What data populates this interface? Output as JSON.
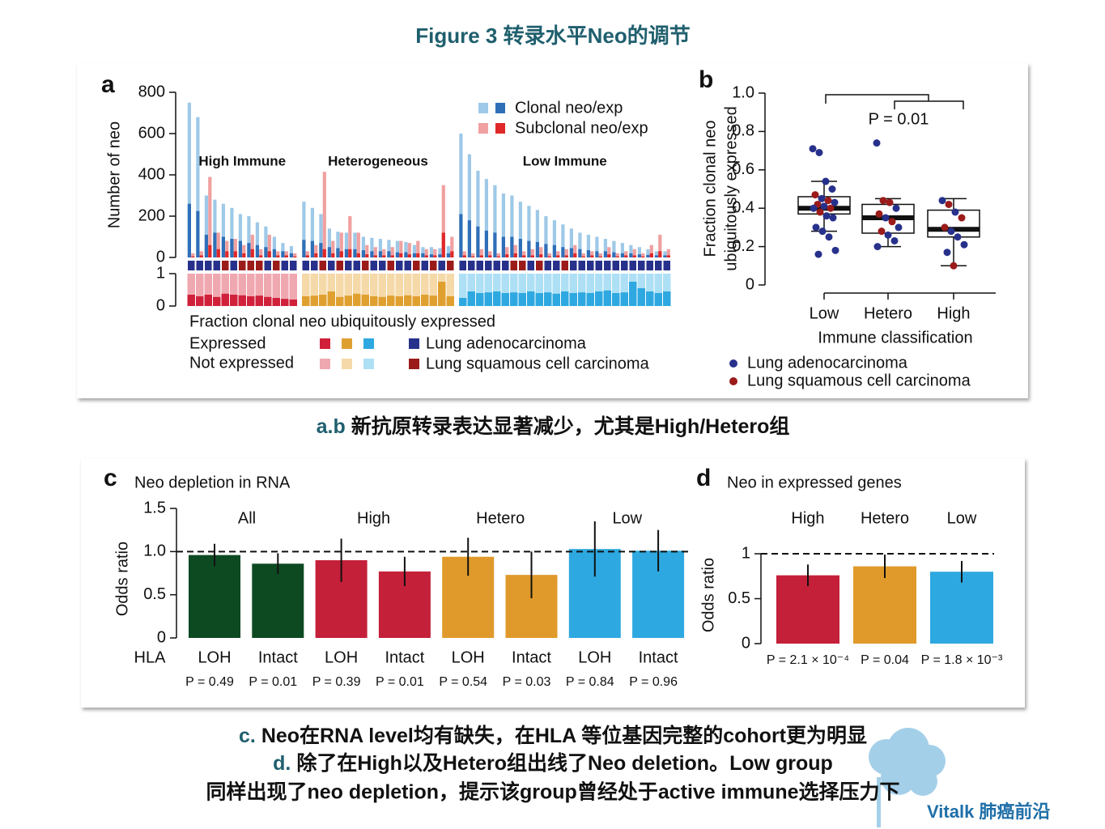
{
  "title": "Figure 3 转录水平Neo的调节",
  "captions": [
    {
      "prefix": "a.b",
      "text": "新抗原转录表达显著减少，尤其是High/Hetero组"
    },
    {
      "prefix": "c.",
      "text": "Neo在RNA level均有缺失，在HLA 等位基因完整的cohort更为明显"
    },
    {
      "prefix": "d.",
      "text": "除了在High以及Hetero组出线了Neo deletion。Low group"
    },
    {
      "text": "同样出现了neo depletion，提示该group曾经处于active immune选择压力下"
    }
  ],
  "logo": "Vitalk 肺癌前沿",
  "chart_data": [
    {
      "type": "bar",
      "panel": "a",
      "ylabel": "Number of neo",
      "ylim": [
        0,
        800
      ],
      "yticks": [
        0,
        200,
        400,
        600,
        800
      ],
      "legend": [
        {
          "name": "Clonal neo/exp",
          "colors": [
            "#9ec9e8",
            "#2f6fb8"
          ]
        },
        {
          "name": "Subclonal neo/exp",
          "colors": [
            "#f0a0a0",
            "#e02828"
          ]
        }
      ],
      "histology_legend": [
        {
          "name": "Lung adenocarcinoma",
          "color": "#27318b"
        },
        {
          "name": "Lung squamous cell carcinoma",
          "color": "#9b1b1b"
        }
      ],
      "fraction_label": "Fraction clonal neo ubiquitously expressed",
      "fraction_ylim": [
        0,
        1
      ],
      "fraction_yticks": [
        0,
        1
      ],
      "expressed_label": "Expressed",
      "not_expressed_label": "Not expressed",
      "groups": [
        {
          "name": "High Immune",
          "colors": [
            "#d0203a",
            "#f0a8b0"
          ],
          "clonal": [
            750,
            680,
            300,
            280,
            260,
            240,
            210,
            200,
            170,
            150,
            100,
            70,
            55
          ],
          "clonal_expressed": [
            260,
            225,
            110,
            120,
            100,
            90,
            80,
            70,
            60,
            50,
            40,
            30,
            20
          ],
          "subclonal": [
            20,
            30,
            390,
            120,
            80,
            90,
            60,
            110,
            40,
            110,
            30,
            30,
            20
          ],
          "subclonal_expressed": [
            5,
            10,
            60,
            40,
            30,
            30,
            20,
            40,
            10,
            30,
            10,
            10,
            5
          ],
          "histology": [
            0,
            0,
            0,
            0,
            1,
            0,
            1,
            1,
            1,
            0,
            1,
            0,
            0
          ],
          "fraction": [
            0.35,
            0.3,
            0.35,
            0.28,
            0.38,
            0.35,
            0.33,
            0.3,
            0.32,
            0.28,
            0.25,
            0.22,
            0.2
          ]
        },
        {
          "name": "Heterogeneous",
          "colors": [
            "#e0a030",
            "#f5d9a8"
          ],
          "clonal": [
            270,
            240,
            210,
            140,
            125,
            120,
            120,
            100,
            95,
            90,
            85,
            80,
            75,
            60,
            50,
            50,
            45,
            55
          ],
          "clonal_expressed": [
            85,
            80,
            70,
            50,
            45,
            40,
            40,
            35,
            30,
            30,
            30,
            25,
            25,
            20,
            20,
            15,
            15,
            20
          ],
          "subclonal": [
            30,
            60,
            415,
            80,
            120,
            200,
            120,
            60,
            50,
            40,
            50,
            80,
            70,
            80,
            40,
            40,
            350,
            100
          ],
          "subclonal_expressed": [
            10,
            20,
            40,
            20,
            30,
            40,
            20,
            15,
            10,
            10,
            10,
            20,
            15,
            20,
            10,
            10,
            120,
            30
          ],
          "histology": [
            0,
            0,
            1,
            0,
            1,
            0,
            0,
            1,
            0,
            0,
            1,
            0,
            0,
            1,
            0,
            1,
            0,
            1
          ],
          "fraction": [
            0.3,
            0.32,
            0.35,
            0.45,
            0.28,
            0.32,
            0.38,
            0.35,
            0.3,
            0.28,
            0.32,
            0.3,
            0.33,
            0.3,
            0.35,
            0.32,
            0.75,
            0.3
          ]
        },
        {
          "name": "Low Immune",
          "colors": [
            "#2ea8e0",
            "#aee0f5"
          ],
          "clonal": [
            600,
            500,
            420,
            380,
            350,
            310,
            300,
            270,
            250,
            230,
            200,
            180,
            160,
            140,
            120,
            110,
            100,
            90,
            80,
            70,
            60,
            50,
            40,
            30,
            30
          ],
          "clonal_expressed": [
            210,
            180,
            150,
            130,
            120,
            100,
            100,
            90,
            80,
            75,
            65,
            60,
            50,
            45,
            40,
            35,
            30,
            30,
            25,
            20,
            20,
            15,
            12,
            10,
            10
          ],
          "subclonal": [
            30,
            20,
            40,
            30,
            20,
            50,
            60,
            30,
            40,
            50,
            20,
            30,
            40,
            60,
            20,
            30,
            20,
            50,
            20,
            30,
            40,
            20,
            60,
            110,
            40
          ],
          "subclonal_expressed": [
            10,
            5,
            10,
            10,
            5,
            15,
            20,
            10,
            10,
            15,
            5,
            10,
            10,
            20,
            5,
            10,
            5,
            15,
            5,
            10,
            10,
            5,
            20,
            30,
            10
          ],
          "histology": [
            0,
            0,
            0,
            0,
            0,
            0,
            1,
            1,
            0,
            1,
            0,
            0,
            1,
            0,
            0,
            0,
            0,
            0,
            0,
            0,
            0,
            0,
            0,
            0,
            0
          ],
          "fraction": [
            0.25,
            0.45,
            0.4,
            0.42,
            0.45,
            0.4,
            0.42,
            0.4,
            0.45,
            0.4,
            0.42,
            0.38,
            0.45,
            0.4,
            0.42,
            0.4,
            0.45,
            0.48,
            0.4,
            0.42,
            0.75,
            0.55,
            0.45,
            0.4,
            0.45
          ]
        }
      ]
    },
    {
      "type": "box",
      "panel": "b",
      "ylabel": [
        "Fraction clonal neo",
        "ubiquitously expressed"
      ],
      "xlabel": "Immune classification",
      "categories": [
        "Low",
        "Hetero",
        "High"
      ],
      "ylim": [
        0,
        1
      ],
      "yticks": [
        0,
        0.2,
        0.4,
        0.6,
        0.8,
        {
          "value": 1,
          "label": "1.0"
        }
      ],
      "annotation": "P = 0.01",
      "boxes": [
        {
          "whislo": 0.28,
          "q1": 0.37,
          "med": 0.4,
          "q3": 0.46,
          "whishi": 0.54
        },
        {
          "whislo": 0.2,
          "q1": 0.27,
          "med": 0.35,
          "q3": 0.42,
          "whishi": 0.45
        },
        {
          "whislo": 0.1,
          "q1": 0.25,
          "med": 0.29,
          "q3": 0.39,
          "whishi": 0.45
        }
      ],
      "points": [
        {
          "values": [
            0.71,
            0.69,
            0.54,
            0.5,
            0.47,
            0.45,
            0.44,
            0.43,
            0.42,
            0.41,
            0.4,
            0.4,
            0.38,
            0.36,
            0.35,
            0.3,
            0.28,
            0.25,
            0.18,
            0.16
          ],
          "histology": [
            0,
            0,
            0,
            0,
            1,
            0,
            1,
            0,
            1,
            0,
            1,
            0,
            1,
            0,
            0,
            0,
            0,
            0,
            0,
            0
          ]
        },
        {
          "values": [
            0.74,
            0.44,
            0.43,
            0.4,
            0.37,
            0.35,
            0.33,
            0.3,
            0.28,
            0.26,
            0.23,
            0.2
          ],
          "histology": [
            0,
            1,
            1,
            0,
            1,
            0,
            1,
            0,
            1,
            0,
            0,
            0
          ]
        },
        {
          "values": [
            0.44,
            0.42,
            0.38,
            0.35,
            0.3,
            0.28,
            0.25,
            0.21,
            0.17,
            0.1
          ],
          "histology": [
            0,
            1,
            0,
            1,
            1,
            0,
            0,
            0,
            0,
            1
          ]
        }
      ],
      "legend": [
        {
          "name": "Lung adenocarcinoma",
          "color": "#27318b"
        },
        {
          "name": "Lung squamous cell carcinoma",
          "color": "#9b1b1b"
        }
      ]
    },
    {
      "type": "bar",
      "panel": "c",
      "title": "Neo depletion in RNA",
      "ylabel": "Odds ratio",
      "xlabel": "HLA",
      "groups": [
        "All",
        "High",
        "Hetero",
        "Low"
      ],
      "categories": [
        "LOH",
        "Intact",
        "LOH",
        "Intact",
        "LOH",
        "Intact",
        "LOH",
        "Intact"
      ],
      "values": [
        0.96,
        0.86,
        0.9,
        0.77,
        0.94,
        0.73,
        1.03,
        1.01
      ],
      "errors": [
        0.13,
        0.12,
        0.25,
        0.17,
        0.22,
        0.27,
        0.32,
        0.24
      ],
      "colors": [
        "#0d4a22",
        "#0d4a22",
        "#c4203a",
        "#c4203a",
        "#e09a2b",
        "#e09a2b",
        "#2ea8e0",
        "#2ea8e0"
      ],
      "p_labels": [
        "P = 0.49",
        "P = 0.01",
        "P = 0.39",
        "P = 0.01",
        "P = 0.54",
        "P = 0.03",
        "P = 0.84",
        "P = 0.96"
      ],
      "ylim": [
        0,
        1.5
      ],
      "yticks": [
        0,
        0.5,
        {
          "value": 1,
          "label": "1.0"
        },
        1.5
      ],
      "reference_line": 1
    },
    {
      "type": "bar",
      "panel": "d",
      "title": "Neo in expressed genes",
      "ylabel": "Odds ratio",
      "categories": [
        "High",
        "Hetero",
        "Low"
      ],
      "values": [
        0.76,
        0.86,
        0.8
      ],
      "errors": [
        0.12,
        0.13,
        0.12
      ],
      "colors": [
        "#c4203a",
        "#e09a2b",
        "#2ea8e0"
      ],
      "p_labels": [
        "P = 2.1 × 10⁻⁴",
        "P = 0.04",
        "P = 1.8 × 10⁻³"
      ],
      "ylim": [
        0,
        1
      ],
      "yticks": [
        0,
        0.5,
        1
      ],
      "reference_line": 1
    }
  ]
}
